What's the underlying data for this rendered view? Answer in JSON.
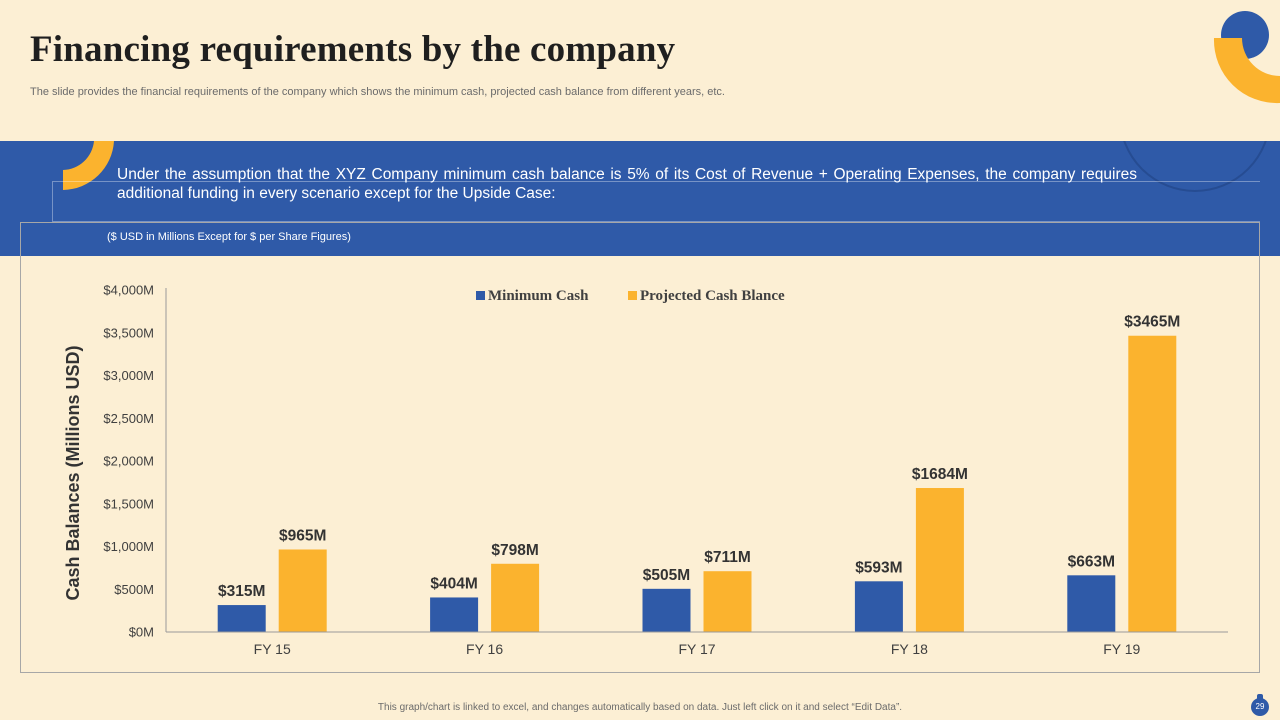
{
  "slide": {
    "title": "Financing requirements  by the company",
    "subtitle": "The slide provides the financial requirements of the company which shows the minimum cash, projected cash balance from different years, etc.",
    "assumption": "Under the assumption that the XYZ Company minimum cash balance is 5% of its Cost of Revenue + Operating Expenses, the company requires additional funding in every scenario except for the Upside Case:",
    "units_note": "($ USD  in Millions Except for $ per Share Figures)",
    "footer_note": "This graph/chart is linked to excel, and changes automatically based on data. Just left click on it and select “Edit Data”.",
    "page_number": "29"
  },
  "colors": {
    "primary": "#2f5aa8",
    "accent": "#fbb32e",
    "background": "#fcefd4"
  },
  "chart_data": {
    "type": "bar",
    "categories": [
      "FY 15",
      "FY 16",
      "FY 17",
      "FY 18",
      "FY 19"
    ],
    "series": [
      {
        "name": "Minimum Cash",
        "values": [
          315,
          404,
          505,
          593,
          663
        ],
        "labels": [
          "$315M",
          "$404M",
          "$505M",
          "$593M",
          "$663M"
        ],
        "color": "#2f5aa8"
      },
      {
        "name": "Projected Cash Blance",
        "values": [
          965,
          798,
          711,
          1684,
          3465
        ],
        "labels": [
          "$965M",
          "$798M",
          "$711M",
          "$1684M",
          "$3465M"
        ],
        "color": "#fbb32e"
      }
    ],
    "ylabel": "Cash Balances (Millions USD)",
    "xlabel": "",
    "ylim": [
      0,
      4000
    ],
    "yticks": [
      0,
      500,
      1000,
      1500,
      2000,
      2500,
      3000,
      3500,
      4000
    ],
    "ytick_labels": [
      "$0M",
      "$500M",
      "$1,000M",
      "$1,500M",
      "$2,000M",
      "$2,500M",
      "$3,000M",
      "$3,500M",
      "$4,000M"
    ],
    "legend_position": "top-center",
    "grid": false
  }
}
